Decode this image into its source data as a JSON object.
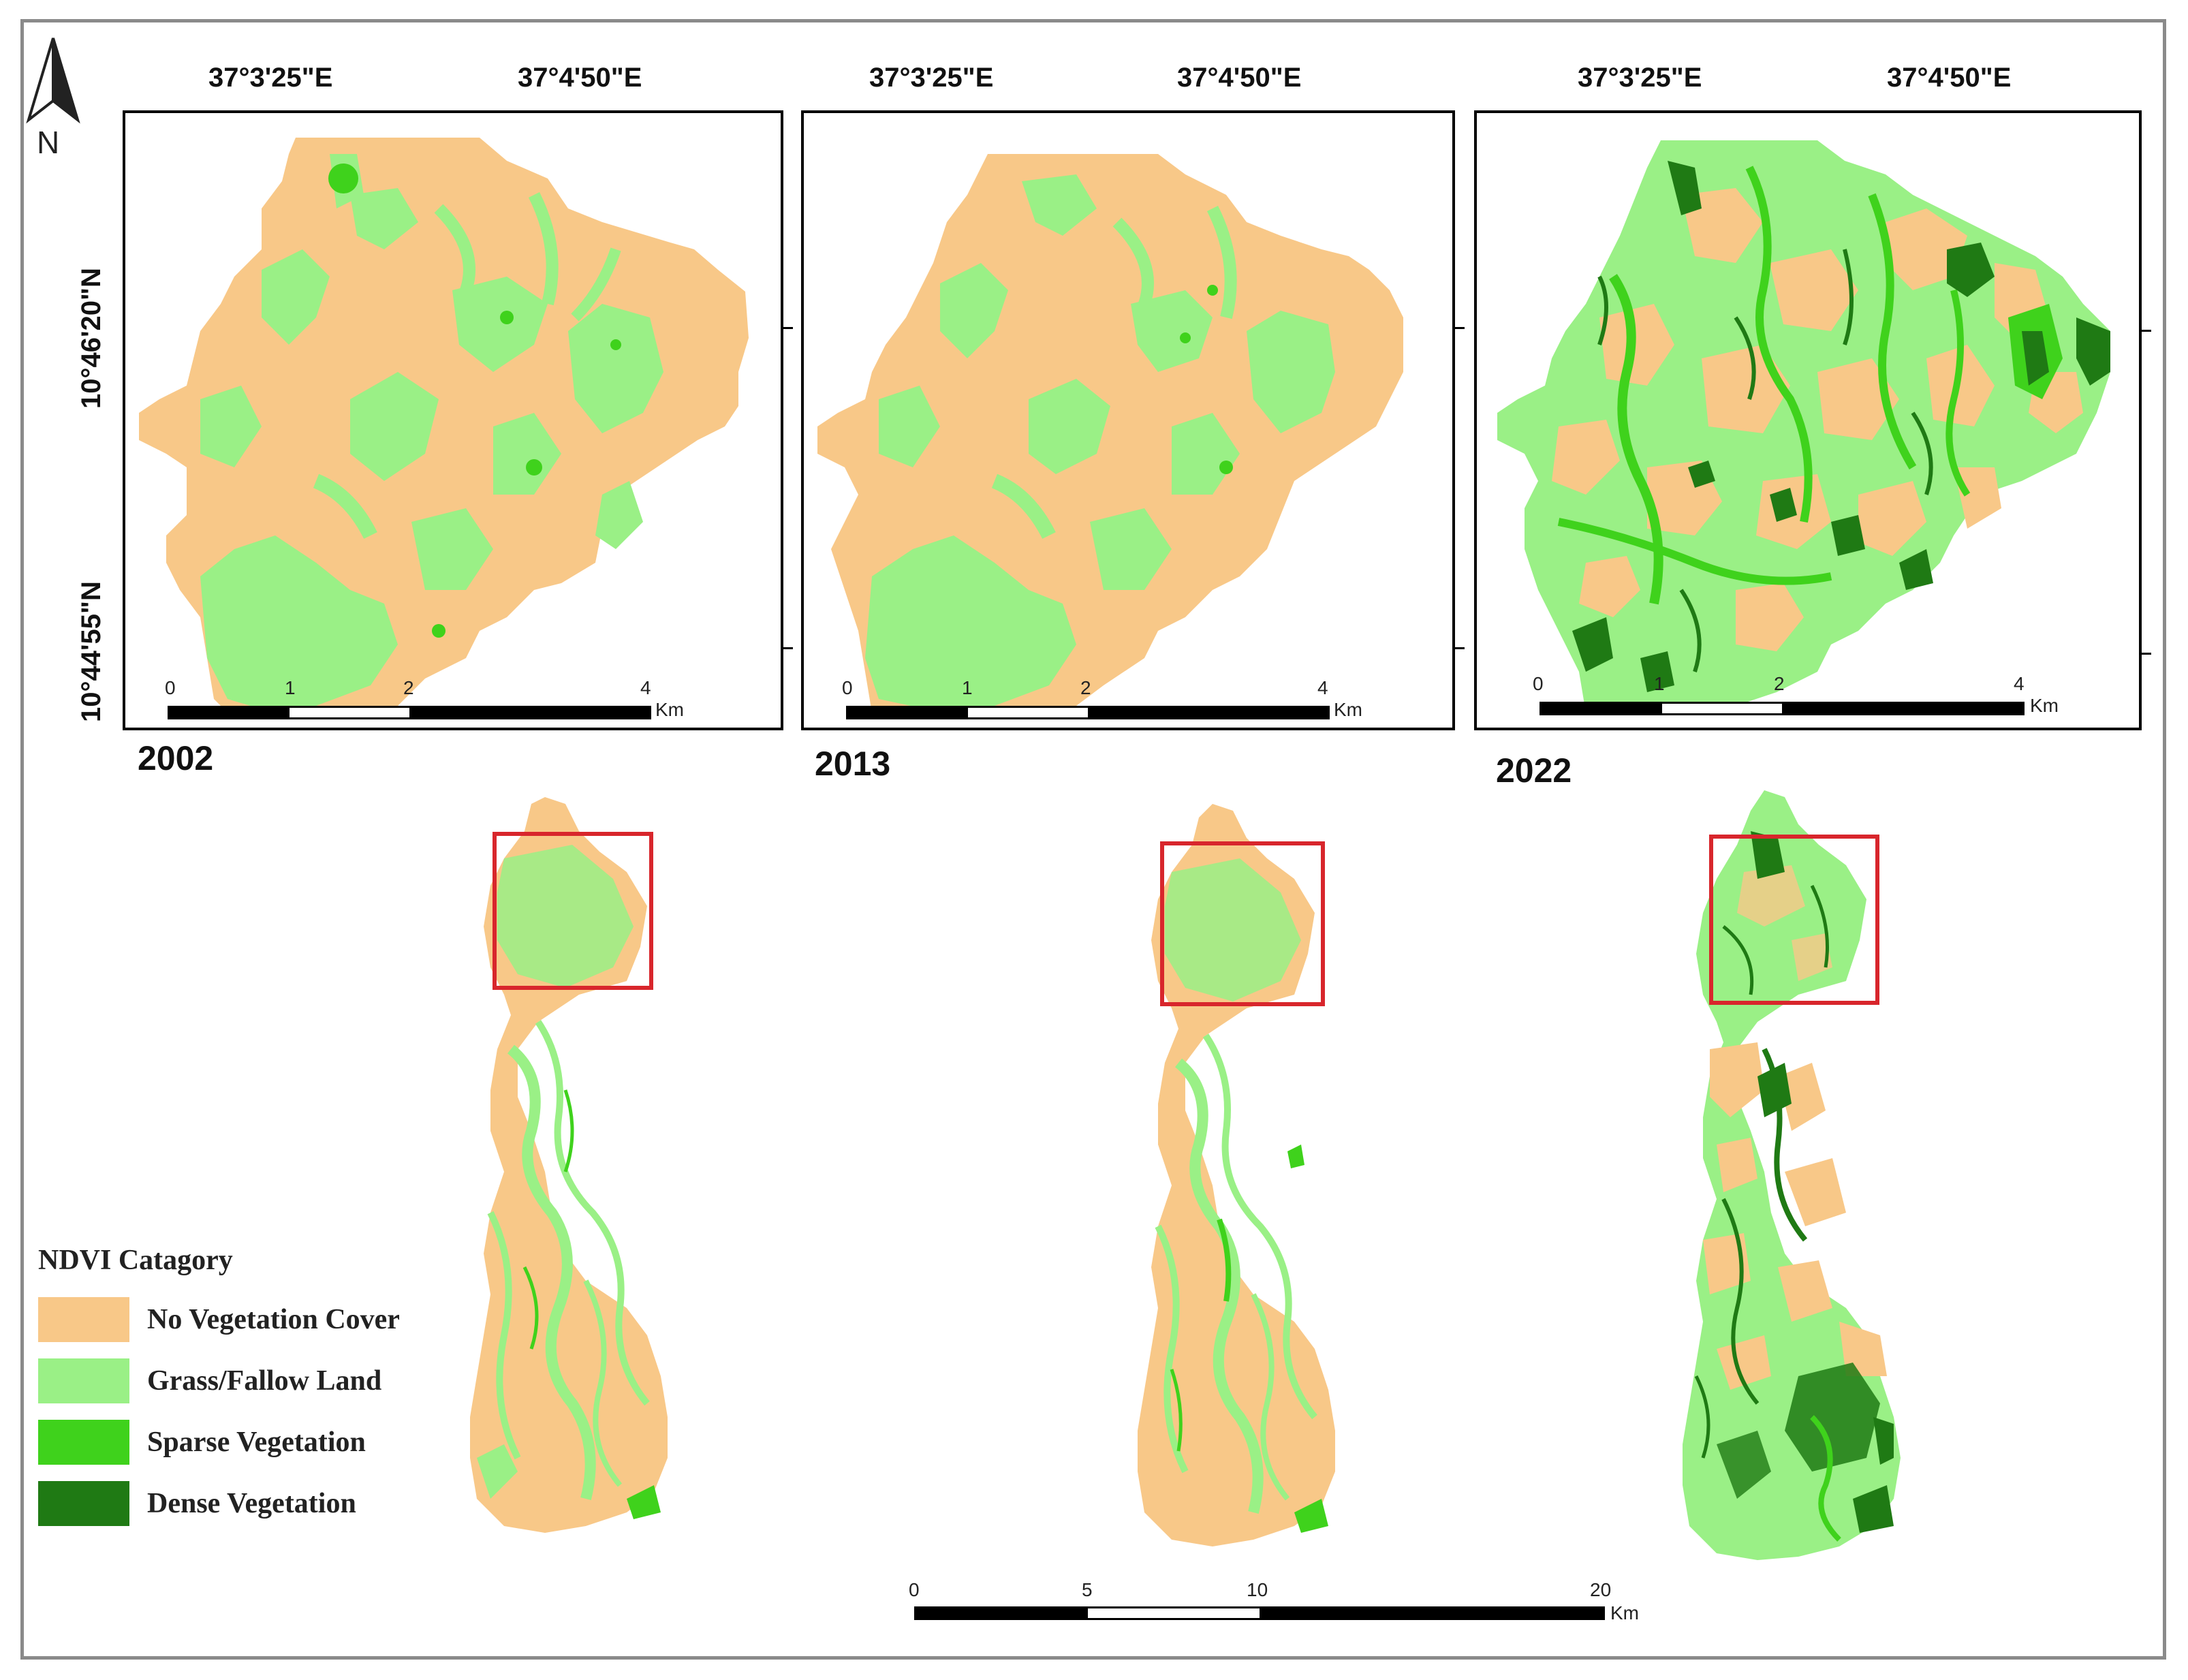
{
  "colors": {
    "no_vegetation": "#f8c888",
    "grass": "#9af086",
    "sparse": "#3fd21c",
    "dense": "#1f7a14",
    "zoom_box": "#d8262c"
  },
  "north_arrow": {
    "label": "N"
  },
  "insets": [
    {
      "year": "2002",
      "lon_labels": [
        "37°3'25\"E",
        "37°4'50\"E"
      ],
      "lat_labels": [
        "10°46'20\"N",
        "10°44'55\"N"
      ],
      "scale": {
        "labels": [
          "0",
          "1",
          "2",
          "4"
        ],
        "unit": "Km"
      }
    },
    {
      "year": "2013",
      "lon_labels": [
        "37°3'25\"E",
        "37°4'50\"E"
      ],
      "scale": {
        "labels": [
          "0",
          "1",
          "2",
          "4"
        ],
        "unit": "Km"
      }
    },
    {
      "year": "2022",
      "lon_labels": [
        "37°3'25\"E",
        "37°4'50\"E"
      ],
      "scale": {
        "labels": [
          "0",
          "1",
          "2",
          "4"
        ],
        "unit": "Km"
      }
    }
  ],
  "main_scale": {
    "labels": [
      "0",
      "5",
      "10",
      "20"
    ],
    "unit": "Km"
  },
  "legend": {
    "title": "NDVI Catagory",
    "items": [
      {
        "label": "No Vegetation Cover",
        "color": "#f8c888"
      },
      {
        "label": "Grass/Fallow Land",
        "color": "#9af086"
      },
      {
        "label": "Sparse Vegetation",
        "color": "#3fd21c"
      },
      {
        "label": "Dense Vegetation",
        "color": "#1f7a14"
      }
    ]
  }
}
